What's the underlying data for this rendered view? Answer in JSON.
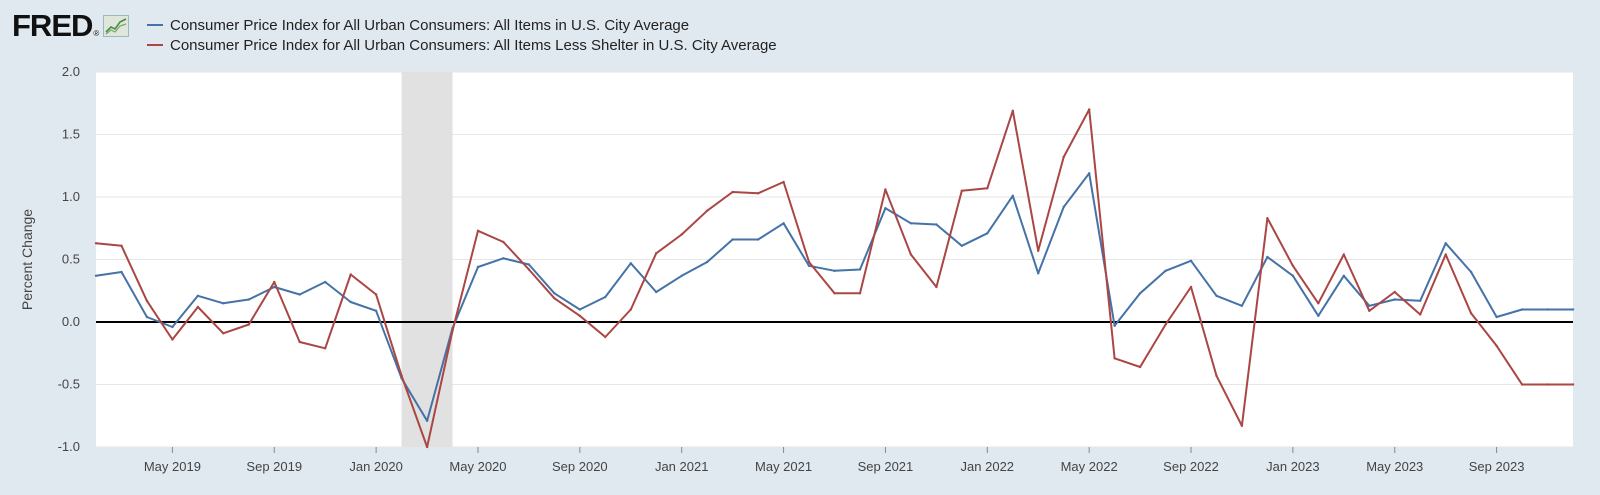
{
  "brand": {
    "logo_text": "FRED",
    "registered": "®"
  },
  "colors": {
    "page_bg": "#e1e9f0",
    "plot_bg": "#ffffff",
    "series_1": "#4572a7",
    "series_2": "#aa4643",
    "recession": "#e1e1e1",
    "zero_line": "#000000",
    "grid": "#e6e6e6"
  },
  "chart_data": {
    "type": "line",
    "ylabel": "Percent Change",
    "ylim": [
      -1.0,
      2.0
    ],
    "yticks": [
      2.0,
      1.5,
      1.0,
      0.5,
      0.0,
      -0.5,
      -1.0
    ],
    "ytick_labels": [
      "2.0",
      "1.5",
      "1.0",
      "0.5",
      "0.0",
      "-0.5",
      "-1.0"
    ],
    "xlim": [
      "2019-02",
      "2023-12"
    ],
    "xticks": [
      {
        "date": "2019-05",
        "label": "May 2019"
      },
      {
        "date": "2019-09",
        "label": "Sep 2019"
      },
      {
        "date": "2020-01",
        "label": "Jan 2020"
      },
      {
        "date": "2020-05",
        "label": "May 2020"
      },
      {
        "date": "2020-09",
        "label": "Sep 2020"
      },
      {
        "date": "2021-01",
        "label": "Jan 2021"
      },
      {
        "date": "2021-05",
        "label": "May 2021"
      },
      {
        "date": "2021-09",
        "label": "Sep 2021"
      },
      {
        "date": "2022-01",
        "label": "Jan 2022"
      },
      {
        "date": "2022-05",
        "label": "May 2022"
      },
      {
        "date": "2022-09",
        "label": "Sep 2022"
      },
      {
        "date": "2023-01",
        "label": "Jan 2023"
      },
      {
        "date": "2023-05",
        "label": "May 2023"
      },
      {
        "date": "2023-09",
        "label": "Sep 2023"
      }
    ],
    "recession": {
      "start": "2020-02",
      "end": "2020-04"
    },
    "zero_line": 0.0,
    "grid": true,
    "legend_position": "top-left",
    "x": [
      "2019-02",
      "2019-03",
      "2019-04",
      "2019-05",
      "2019-06",
      "2019-07",
      "2019-08",
      "2019-09",
      "2019-10",
      "2019-11",
      "2019-12",
      "2020-01",
      "2020-02",
      "2020-03",
      "2020-04",
      "2020-05",
      "2020-06",
      "2020-07",
      "2020-08",
      "2020-09",
      "2020-10",
      "2020-11",
      "2020-12",
      "2021-01",
      "2021-02",
      "2021-03",
      "2021-04",
      "2021-05",
      "2021-06",
      "2021-07",
      "2021-08",
      "2021-09",
      "2021-10",
      "2021-11",
      "2021-12",
      "2022-01",
      "2022-02",
      "2022-03",
      "2022-04",
      "2022-05",
      "2022-06",
      "2022-07",
      "2022-08",
      "2022-09",
      "2022-10",
      "2022-11",
      "2022-12",
      "2023-01",
      "2023-02",
      "2023-03",
      "2023-04",
      "2023-05",
      "2023-06",
      "2023-07",
      "2023-08",
      "2023-09",
      "2023-10",
      "2023-11",
      "2023-12"
    ],
    "series": [
      {
        "name": "Consumer Price Index for All Urban Consumers: All Items in U.S. City Average",
        "color": "#4572a7",
        "values": [
          0.37,
          0.4,
          0.04,
          -0.04,
          0.21,
          0.15,
          0.18,
          0.28,
          0.22,
          0.32,
          0.16,
          0.09,
          -0.45,
          -0.79,
          -0.05,
          0.44,
          0.51,
          0.46,
          0.23,
          0.1,
          0.2,
          0.47,
          0.24,
          0.37,
          0.48,
          0.66,
          0.66,
          0.79,
          0.45,
          0.41,
          0.42,
          0.91,
          0.79,
          0.78,
          0.61,
          0.71,
          1.01,
          0.39,
          0.92,
          1.19,
          -0.03,
          0.23,
          0.41,
          0.49,
          0.21,
          0.13,
          0.52,
          0.37,
          0.05,
          0.37,
          0.13,
          0.18,
          0.17,
          0.63,
          0.4,
          0.04,
          0.1,
          0.1,
          0.1
        ]
      },
      {
        "name": "Consumer Price Index for All Urban Consumers: All Items Less Shelter in U.S. City Average",
        "color": "#aa4643",
        "values": [
          0.63,
          0.61,
          0.17,
          -0.14,
          0.12,
          -0.09,
          -0.02,
          0.32,
          -0.16,
          -0.21,
          0.38,
          0.22,
          -0.43,
          -1.0,
          -0.07,
          0.73,
          0.64,
          0.42,
          0.19,
          0.05,
          -0.12,
          0.1,
          0.55,
          0.7,
          0.89,
          1.04,
          1.03,
          1.12,
          0.48,
          0.23,
          0.23,
          1.06,
          0.54,
          0.28,
          1.05,
          1.07,
          1.69,
          0.57,
          1.32,
          1.7,
          -0.29,
          -0.36,
          -0.02,
          0.28,
          -0.43,
          -0.83,
          0.83,
          0.45,
          0.15,
          0.54,
          0.09,
          0.24,
          0.06,
          0.54,
          0.07,
          -0.19,
          -0.5,
          -0.5,
          -0.5
        ]
      }
    ]
  }
}
